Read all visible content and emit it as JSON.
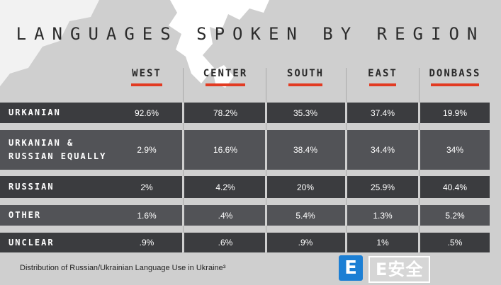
{
  "chart_data": {
    "type": "table",
    "title": "LANGUAGES SPOKEN BY REGION",
    "columns": [
      "WEST",
      "CENTER",
      "SOUTH",
      "EAST",
      "DONBASS"
    ],
    "rows": [
      {
        "label": "URKANIAN",
        "values": [
          "92.6%",
          "78.2%",
          "35.3%",
          "37.4%",
          "19.9%"
        ]
      },
      {
        "label": "URKANIAN &\nRUSSIAN EQUALLY",
        "values": [
          "2.9%",
          "16.6%",
          "38.4%",
          "34.4%",
          "34%"
        ]
      },
      {
        "label": "RUSSIAN",
        "values": [
          "2%",
          "4.2%",
          "20%",
          "25.9%",
          "40.4%"
        ]
      },
      {
        "label": "OTHER",
        "values": [
          "1.6%",
          ".4%",
          "5.4%",
          "1.3%",
          "5.2%"
        ]
      },
      {
        "label": "UNCLEAR",
        "values": [
          ".9%",
          ".6%",
          ".9%",
          "1%",
          ".5%"
        ]
      }
    ],
    "caption": "Distribution of Russian/Ukrainian Language Use in Ukraine³",
    "accent_color": "#e23b22"
  },
  "watermark": {
    "icon_letter": "E",
    "text": "E安全",
    "color": "#1c7fd4"
  }
}
